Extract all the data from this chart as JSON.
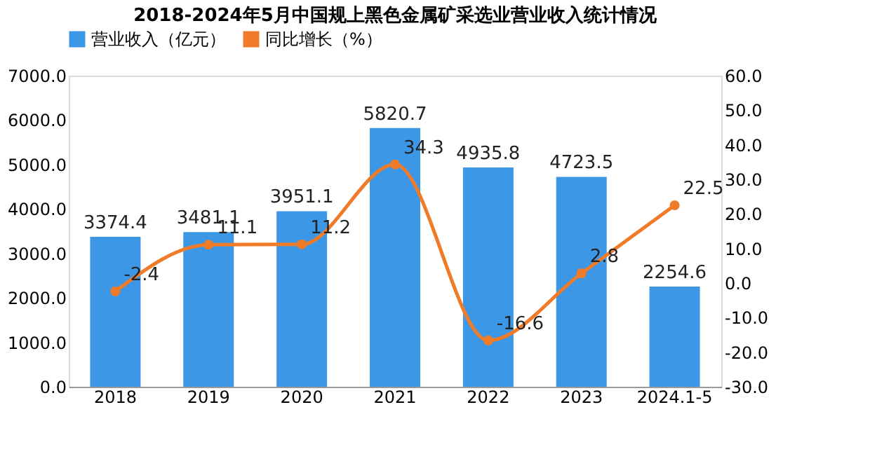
{
  "chart_data": {
    "type": "bar",
    "title": "2018-2024年5月中国规上黑色金属矿采选业营业收入统计情况",
    "categories": [
      "2018",
      "2019",
      "2020",
      "2021",
      "2022",
      "2023",
      "2024.1-5"
    ],
    "series": [
      {
        "name": "营业收入（亿元）",
        "color": "#3c97e6",
        "values": [
          3374.4,
          3481.1,
          3951.1,
          5820.7,
          4935.8,
          4723.5,
          2254.6
        ]
      },
      {
        "name": "同比增长（%）",
        "type": "line",
        "axis": "y2",
        "color": "#f07b28",
        "values": [
          -2.4,
          11.1,
          11.2,
          34.3,
          -16.6,
          2.8,
          22.5
        ]
      }
    ],
    "ylim": [
      0,
      7000
    ],
    "yticks": [
      {
        "value": 0,
        "label": "0.0"
      },
      {
        "value": 1000,
        "label": "1000.0"
      },
      {
        "value": 2000,
        "label": "2000.0"
      },
      {
        "value": 3000,
        "label": "3000.0"
      },
      {
        "value": 4000,
        "label": "4000.0"
      },
      {
        "value": 5000,
        "label": "5000.0"
      },
      {
        "value": 6000,
        "label": "6000.0"
      },
      {
        "value": 7000,
        "label": "7000.0"
      }
    ],
    "y2lim": [
      -30,
      60
    ],
    "y2ticks": [
      {
        "value": -30,
        "label": "-30.0"
      },
      {
        "value": -20,
        "label": "-20.0"
      },
      {
        "value": -10,
        "label": "-10.0"
      },
      {
        "value": 0,
        "label": "0.0"
      },
      {
        "value": 10,
        "label": "10.0"
      },
      {
        "value": 20,
        "label": "20.0"
      },
      {
        "value": 30,
        "label": "30.0"
      },
      {
        "value": 40,
        "label": "40.0"
      },
      {
        "value": 50,
        "label": "50.0"
      },
      {
        "value": 60,
        "label": "60.0"
      }
    ],
    "data_labels": true,
    "legend": "top",
    "grid": false,
    "marker": "circle"
  }
}
